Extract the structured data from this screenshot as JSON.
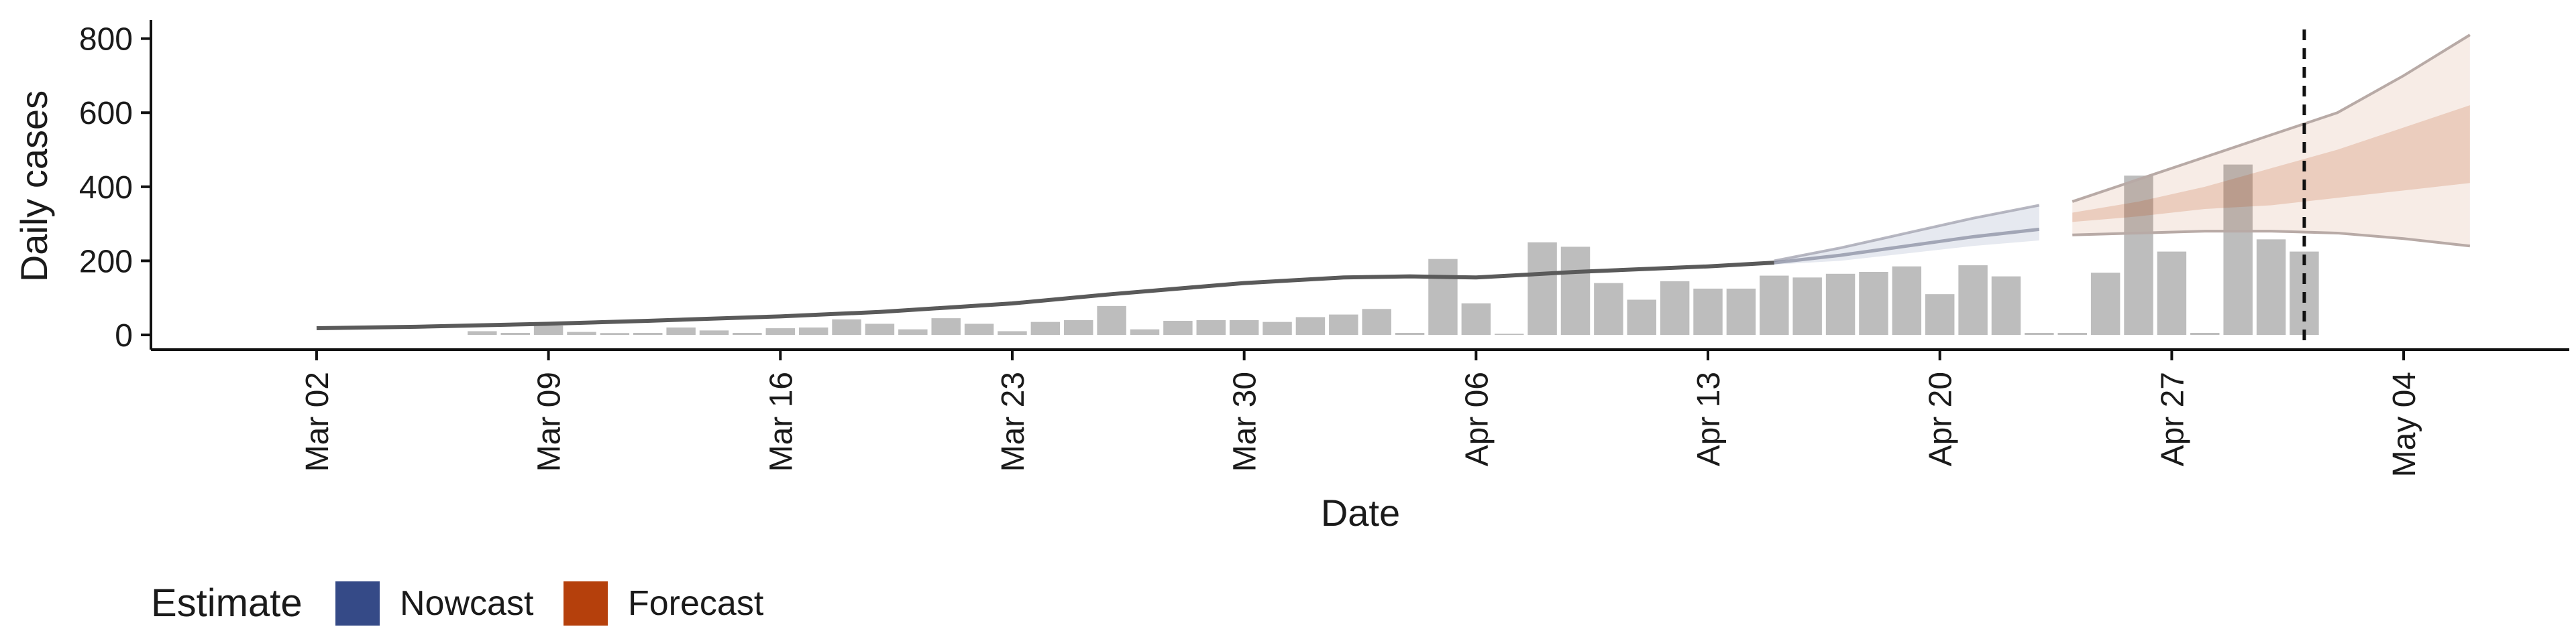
{
  "chart_data": {
    "type": "bar",
    "title": "",
    "xlabel": "Date",
    "ylabel": "Daily cases",
    "ylim": [
      0,
      850
    ],
    "yticks": [
      0,
      200,
      400,
      600,
      800
    ],
    "grid": false,
    "legend": {
      "title": "Estimate",
      "placement": "bottom-left",
      "entries": [
        {
          "label": "Nowcast",
          "color": "#354A87"
        },
        {
          "label": "Forecast",
          "color": "#B5400C"
        }
      ]
    },
    "x_ticks": [
      {
        "date": "2020-03-02",
        "label": "Mar 02"
      },
      {
        "date": "2020-03-09",
        "label": "Mar 09"
      },
      {
        "date": "2020-03-16",
        "label": "Mar 16"
      },
      {
        "date": "2020-03-23",
        "label": "Mar 23"
      },
      {
        "date": "2020-03-30",
        "label": "Mar 30"
      },
      {
        "date": "2020-04-06",
        "label": "Apr 06"
      },
      {
        "date": "2020-04-13",
        "label": "Apr 13"
      },
      {
        "date": "2020-04-20",
        "label": "Apr 20"
      },
      {
        "date": "2020-04-27",
        "label": "Apr 27"
      },
      {
        "date": "2020-05-04",
        "label": "May 04"
      }
    ],
    "x_range": [
      "2020-02-26",
      "2020-05-09"
    ],
    "reference_line_date": "2020-05-01",
    "bars": {
      "color": "#BDBDBD",
      "dates": [
        "2020-03-07",
        "2020-03-08",
        "2020-03-09",
        "2020-03-10",
        "2020-03-11",
        "2020-03-12",
        "2020-03-13",
        "2020-03-14",
        "2020-03-15",
        "2020-03-16",
        "2020-03-17",
        "2020-03-18",
        "2020-03-19",
        "2020-03-20",
        "2020-03-21",
        "2020-03-22",
        "2020-03-23",
        "2020-03-24",
        "2020-03-25",
        "2020-03-26",
        "2020-03-27",
        "2020-03-28",
        "2020-03-29",
        "2020-03-30",
        "2020-03-31",
        "2020-04-01",
        "2020-04-02",
        "2020-04-03",
        "2020-04-04",
        "2020-04-05",
        "2020-04-06",
        "2020-04-07",
        "2020-04-08",
        "2020-04-09",
        "2020-04-10",
        "2020-04-11",
        "2020-04-12",
        "2020-04-13",
        "2020-04-14",
        "2020-04-15",
        "2020-04-16",
        "2020-04-17",
        "2020-04-18",
        "2020-04-19",
        "2020-04-20",
        "2020-04-21",
        "2020-04-22",
        "2020-04-23",
        "2020-04-24",
        "2020-04-25",
        "2020-04-26",
        "2020-04-27",
        "2020-04-28",
        "2020-04-29",
        "2020-04-30",
        "2020-05-01"
      ],
      "values": [
        10,
        0,
        25,
        8,
        5,
        0,
        20,
        12,
        0,
        18,
        20,
        42,
        30,
        15,
        45,
        30,
        10,
        35,
        40,
        78,
        15,
        38,
        40,
        40,
        35,
        48,
        55,
        70,
        0,
        205,
        85,
        3,
        250,
        238,
        140,
        95,
        145,
        125,
        125,
        160,
        155,
        165,
        170,
        185,
        110,
        188,
        158,
        0,
        0,
        168,
        430,
        225,
        0,
        460,
        258,
        225
      ]
    },
    "series": [
      {
        "estimate": "observed-fit",
        "color": "#5A5A5A",
        "x": [
          "2020-03-02",
          "2020-03-05",
          "2020-03-09",
          "2020-03-12",
          "2020-03-16",
          "2020-03-19",
          "2020-03-23",
          "2020-03-26",
          "2020-03-30",
          "2020-04-02",
          "2020-04-04",
          "2020-04-06",
          "2020-04-09",
          "2020-04-13",
          "2020-04-15"
        ],
        "y": [
          18,
          22,
          30,
          38,
          50,
          62,
          85,
          110,
          140,
          155,
          158,
          155,
          170,
          185,
          195
        ]
      },
      {
        "estimate": "Nowcast",
        "color": "#354A87",
        "x": [
          "2020-04-15",
          "2020-04-17",
          "2020-04-19",
          "2020-04-21",
          "2020-04-23"
        ],
        "median": [
          195,
          215,
          240,
          265,
          285
        ],
        "lower": [
          190,
          200,
          220,
          240,
          255
        ],
        "upper": [
          200,
          235,
          275,
          315,
          350
        ]
      },
      {
        "estimate": "Forecast",
        "color": "#B5400C",
        "x": [
          "2020-04-24",
          "2020-04-26",
          "2020-04-28",
          "2020-04-30",
          "2020-05-02",
          "2020-05-04",
          "2020-05-06"
        ],
        "lower90": [
          270,
          275,
          280,
          280,
          275,
          260,
          240
        ],
        "lower50": [
          305,
          320,
          340,
          350,
          370,
          390,
          410
        ],
        "upper50": [
          330,
          360,
          400,
          450,
          500,
          560,
          620
        ],
        "upper90": [
          360,
          420,
          480,
          540,
          600,
          700,
          810
        ]
      }
    ]
  }
}
